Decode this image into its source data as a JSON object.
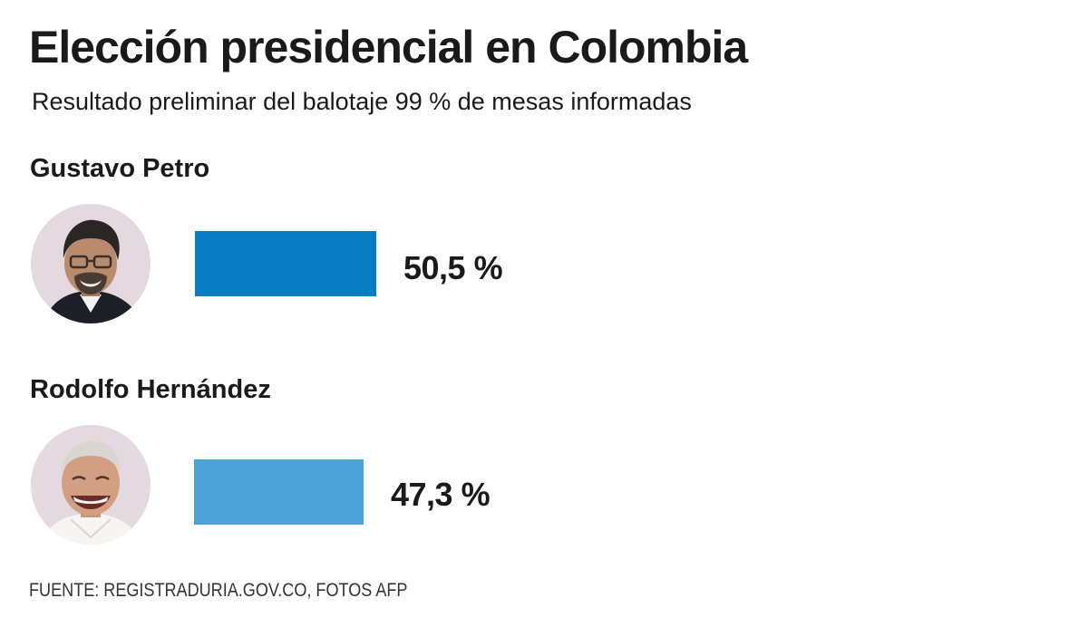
{
  "title": "Elección presidencial en Colombia",
  "subtitle": "Resultado preliminar del balotaje 99 % de mesas informadas",
  "source": "FUENTE: REGISTRADURIA.GOV.CO, FOTOS AFP",
  "colors": {
    "petro_bar": "#0a7cc4",
    "hernandez_bar": "#4ba3d8",
    "avatar_bg": "#e3d9df"
  },
  "chart_data": {
    "type": "bar",
    "orientation": "horizontal",
    "title": "Elección presidencial en Colombia",
    "subtitle": "Resultado preliminar del balotaje 99 % de mesas informadas",
    "categories": [
      "Gustavo Petro",
      "Rodolfo Hernández"
    ],
    "values": [
      50.5,
      47.3
    ],
    "value_labels": [
      "50,5 %",
      "47,3 %"
    ],
    "unit": "%",
    "grid": false,
    "legend": "none"
  },
  "candidates": [
    {
      "name": "Gustavo Petro",
      "label": "50,5 %",
      "photo_icon": "candidate-photo-icon"
    },
    {
      "name": "Rodolfo Hernández",
      "label": "47,3 %",
      "photo_icon": "candidate-photo-icon"
    }
  ]
}
